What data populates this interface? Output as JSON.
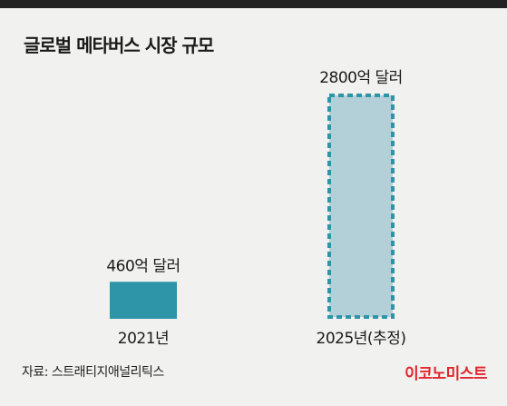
{
  "title": "글로벌 메타버스 시장 규모",
  "source": "자료: 스트래티지애널리틱스",
  "publisher": "이코노미스트",
  "colors": {
    "top_bar": "#222222",
    "actual_bar": "#2e95a8",
    "estimate_fill": "#b3cfd7",
    "estimate_border": "#2e95a8",
    "publisher": "#e0262d"
  },
  "chart_data": {
    "type": "bar",
    "title": "글로벌 메타버스 시장 규모",
    "categories": [
      "2021년",
      "2025년(추정)"
    ],
    "values": [
      460,
      2800
    ],
    "value_labels": [
      "460억 달러",
      "2800억 달러"
    ],
    "unit": "억 달러",
    "estimated": [
      false,
      true
    ],
    "ylim": [
      0,
      2800
    ],
    "grid": false,
    "legend": "none"
  }
}
